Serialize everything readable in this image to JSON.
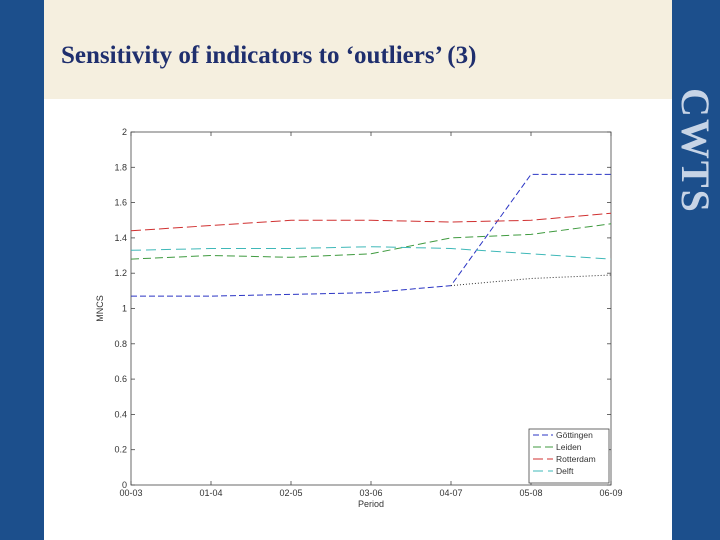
{
  "slide": {
    "title": "Sensitivity of indicators to ‘outliers’ (3)",
    "logo_text": "CWTS"
  },
  "chart_data": {
    "type": "line",
    "title": "",
    "xlabel": "Period",
    "ylabel": "MNCS",
    "categories": [
      "00-03",
      "01-04",
      "02-05",
      "03-06",
      "04-07",
      "05-08",
      "06-09"
    ],
    "ylim": [
      0,
      2
    ],
    "yticks": [
      "0",
      "0.2",
      "0.4",
      "0.6",
      "0.8",
      "1",
      "1.2",
      "1.4",
      "1.6",
      "1.8",
      "2"
    ],
    "legend_position": "bottom-right",
    "series": [
      {
        "name": "Göttingen",
        "values": [
          1.07,
          1.07,
          1.08,
          1.09,
          1.13,
          1.76,
          1.76
        ],
        "color": "#2b35c4",
        "dash": "6,3"
      },
      {
        "name": "Leiden",
        "values": [
          1.28,
          1.3,
          1.29,
          1.31,
          1.4,
          1.42,
          1.48
        ],
        "color": "#3f9a3f",
        "dash": "8,4"
      },
      {
        "name": "Rotterdam",
        "values": [
          1.44,
          1.47,
          1.5,
          1.5,
          1.49,
          1.5,
          1.54
        ],
        "color": "#d03030",
        "dash": "10,4"
      },
      {
        "name": "Delft",
        "values": [
          1.33,
          1.34,
          1.34,
          1.35,
          1.34,
          1.31,
          1.28
        ],
        "color": "#3fb8b8",
        "dash": "10,5"
      },
      {
        "name": "",
        "values": [
          null,
          null,
          null,
          null,
          1.13,
          1.17,
          1.19
        ],
        "color": "#333333",
        "dash": "1,2"
      }
    ]
  }
}
